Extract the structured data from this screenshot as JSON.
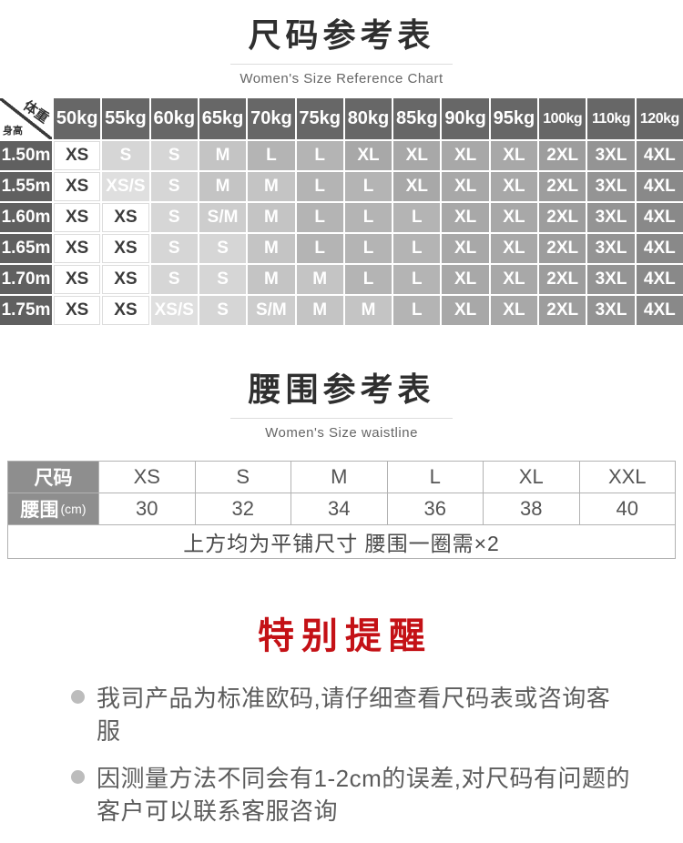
{
  "size_chart": {
    "title": "尺码参考表",
    "subtitle": "Women's Size Reference Chart",
    "corner_weight": "体重",
    "corner_height": "身高",
    "weight_headers": [
      "50kg",
      "55kg",
      "60kg",
      "65kg",
      "70kg",
      "75kg",
      "80kg",
      "85kg",
      "90kg",
      "95kg",
      "100kg",
      "110kg",
      "120kg"
    ],
    "rows": [
      {
        "height": "1.50m",
        "sizes": [
          "XS",
          "S",
          "S",
          "M",
          "L",
          "L",
          "XL",
          "XL",
          "XL",
          "XL",
          "2XL",
          "3XL",
          "4XL"
        ]
      },
      {
        "height": "1.55m",
        "sizes": [
          "XS",
          "XS/S",
          "S",
          "M",
          "M",
          "L",
          "L",
          "XL",
          "XL",
          "XL",
          "2XL",
          "3XL",
          "4XL"
        ]
      },
      {
        "height": "1.60m",
        "sizes": [
          "XS",
          "XS",
          "S",
          "S/M",
          "M",
          "L",
          "L",
          "L",
          "XL",
          "XL",
          "2XL",
          "3XL",
          "4XL"
        ]
      },
      {
        "height": "1.65m",
        "sizes": [
          "XS",
          "XS",
          "S",
          "S",
          "M",
          "L",
          "L",
          "L",
          "XL",
          "XL",
          "2XL",
          "3XL",
          "4XL"
        ]
      },
      {
        "height": "1.70m",
        "sizes": [
          "XS",
          "XS",
          "S",
          "S",
          "M",
          "M",
          "L",
          "L",
          "XL",
          "XL",
          "2XL",
          "3XL",
          "4XL"
        ]
      },
      {
        "height": "1.75m",
        "sizes": [
          "XS",
          "XS",
          "XS/S",
          "S",
          "S/M",
          "M",
          "M",
          "L",
          "XL",
          "XL",
          "2XL",
          "3XL",
          "4XL"
        ]
      }
    ]
  },
  "waist_chart": {
    "title": "腰围参考表",
    "subtitle": "Women's Size waistline",
    "size_row_label": "尺码",
    "waist_row_label": "腰围",
    "waist_row_unit": "(cm)",
    "sizes": [
      "XS",
      "S",
      "M",
      "L",
      "XL",
      "XXL"
    ],
    "values_cm": [
      "30",
      "32",
      "34",
      "36",
      "38",
      "40"
    ],
    "note": "上方均为平铺尺寸 腰围一圈需×2"
  },
  "notice": {
    "title": "特别提醒",
    "items": [
      "我司产品为标准欧码,请仔细查看尺码表或咨询客服",
      "因测量方法不同会有1-2cm的误差,对尺码有问题的客户可以联系客服咨询"
    ]
  },
  "colors": {
    "accent_red": "#c41116",
    "weight_header_bg": "#676767",
    "height_col_bg": "#606060",
    "waist_label_bg": "#8e8e8e",
    "size_shades": {
      "XS": {
        "bg": "#ffffff",
        "fg": "#3c3c3c"
      },
      "XS/S": {
        "bg": "#dfdfdf",
        "fg": "#ffffff"
      },
      "S": {
        "bg": "#d6d6d6",
        "fg": "#ffffff"
      },
      "S/M": {
        "bg": "#cdcdcd",
        "fg": "#ffffff"
      },
      "M": {
        "bg": "#c4c4c4",
        "fg": "#ffffff"
      },
      "L": {
        "bg": "#b4b4b4",
        "fg": "#ffffff"
      },
      "XL": {
        "bg": "#a8a8a8",
        "fg": "#ffffff"
      },
      "2XL": {
        "bg": "#9d9d9d",
        "fg": "#ffffff"
      },
      "3XL": {
        "bg": "#949494",
        "fg": "#ffffff"
      },
      "4XL": {
        "bg": "#898989",
        "fg": "#ffffff"
      }
    }
  }
}
